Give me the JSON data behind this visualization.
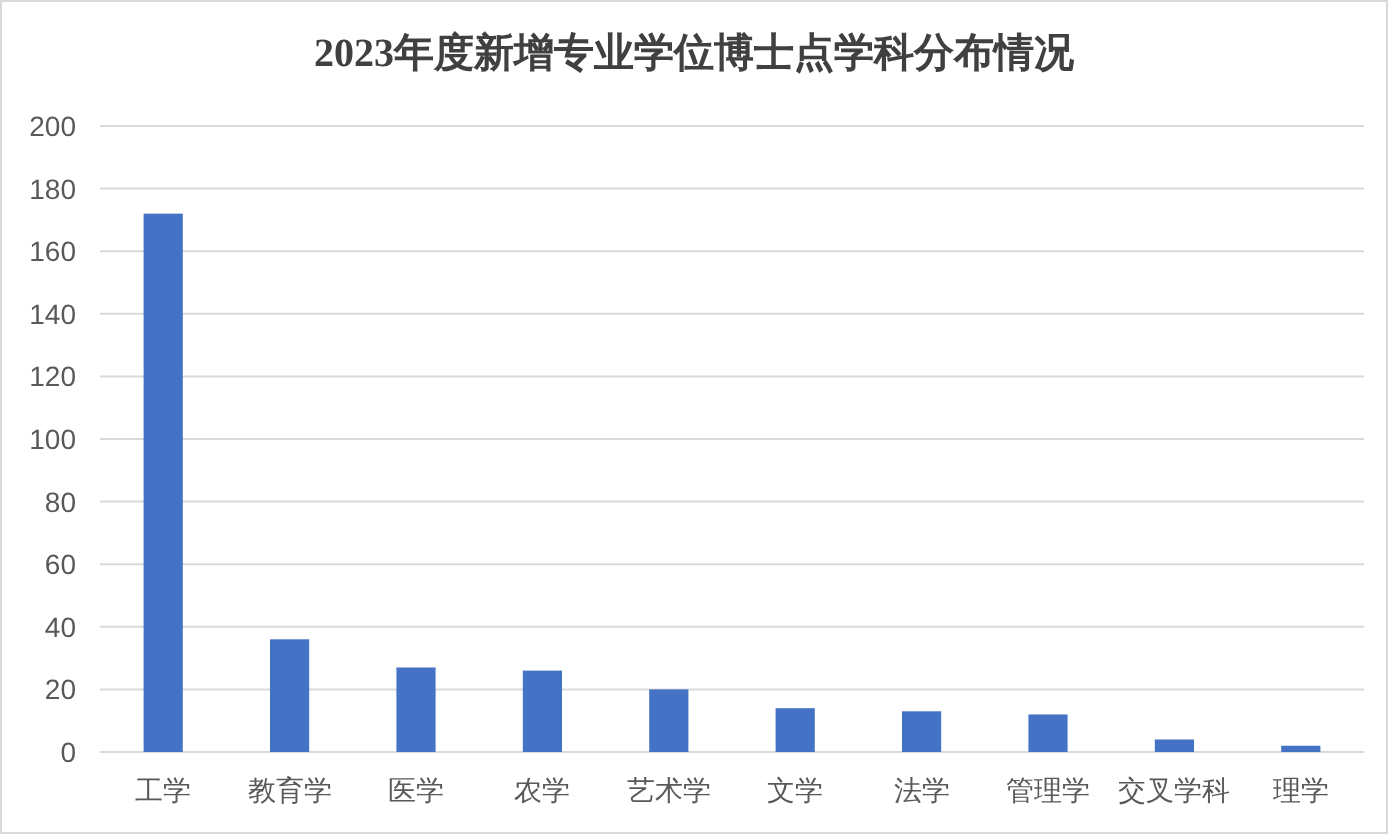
{
  "chart_data": {
    "type": "bar",
    "title": "2023年度新增专业学位博士点学科分布情况",
    "categories": [
      "工学",
      "教育学",
      "医学",
      "农学",
      "艺术学",
      "文学",
      "法学",
      "管理学",
      "交叉学科",
      "理学"
    ],
    "values": [
      172,
      36,
      27,
      26,
      20,
      14,
      13,
      12,
      4,
      2
    ],
    "color": "#4472c4",
    "ylim": [
      0,
      200
    ],
    "yticks": [
      0,
      20,
      40,
      60,
      80,
      100,
      120,
      140,
      160,
      180,
      200
    ],
    "grid": "y"
  }
}
